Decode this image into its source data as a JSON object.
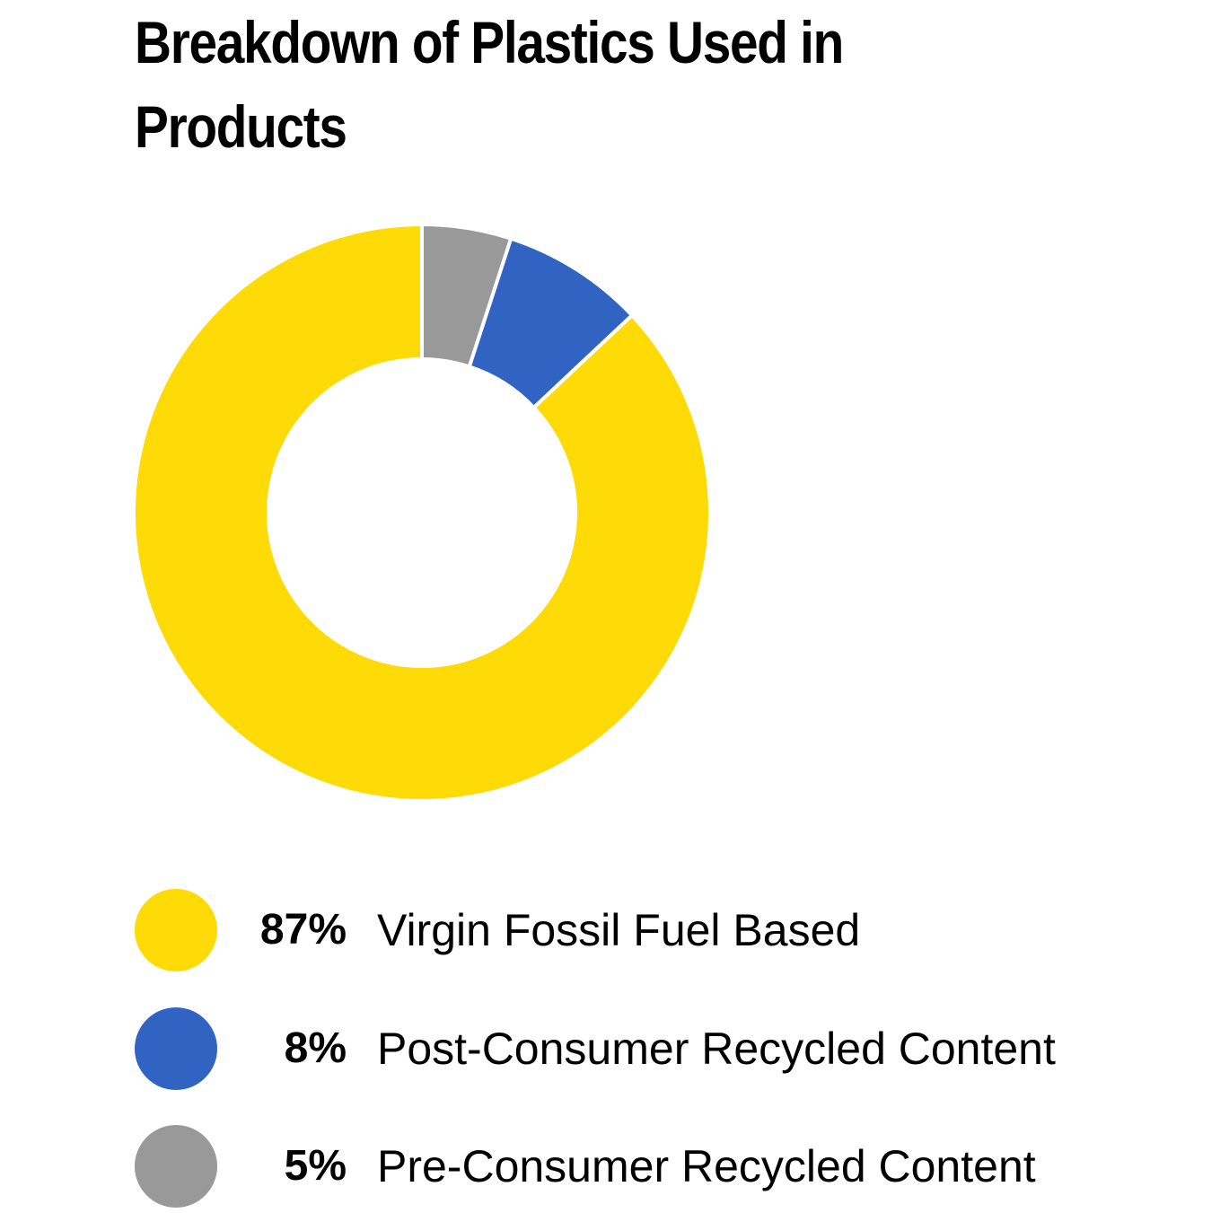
{
  "chart_data": {
    "type": "pie",
    "variant": "donut",
    "title": "Breakdown of Plastics Used in Products",
    "legend_position": "bottom",
    "start_angle_deg": 0,
    "direction": "clockwise",
    "slices": [
      {
        "label": "Pre-Consumer Recycled Content",
        "value": 5,
        "value_label": "5%",
        "color": "#999999"
      },
      {
        "label": "Post-Consumer Recycled Content",
        "value": 8,
        "value_label": "8%",
        "color": "#3063c2"
      },
      {
        "label": "Virgin Fossil Fuel Based",
        "value": 87,
        "value_label": "87%",
        "color": "#fedb06"
      }
    ],
    "legend": [
      {
        "value_label": "87%",
        "label": "Virgin Fossil Fuel Based",
        "color": "#fedb06"
      },
      {
        "value_label": "8%",
        "label": "Post-Consumer Recycled Content",
        "color": "#3063c2"
      },
      {
        "value_label": "5%",
        "label": "Pre-Consumer Recycled Content",
        "color": "#999999"
      }
    ]
  }
}
